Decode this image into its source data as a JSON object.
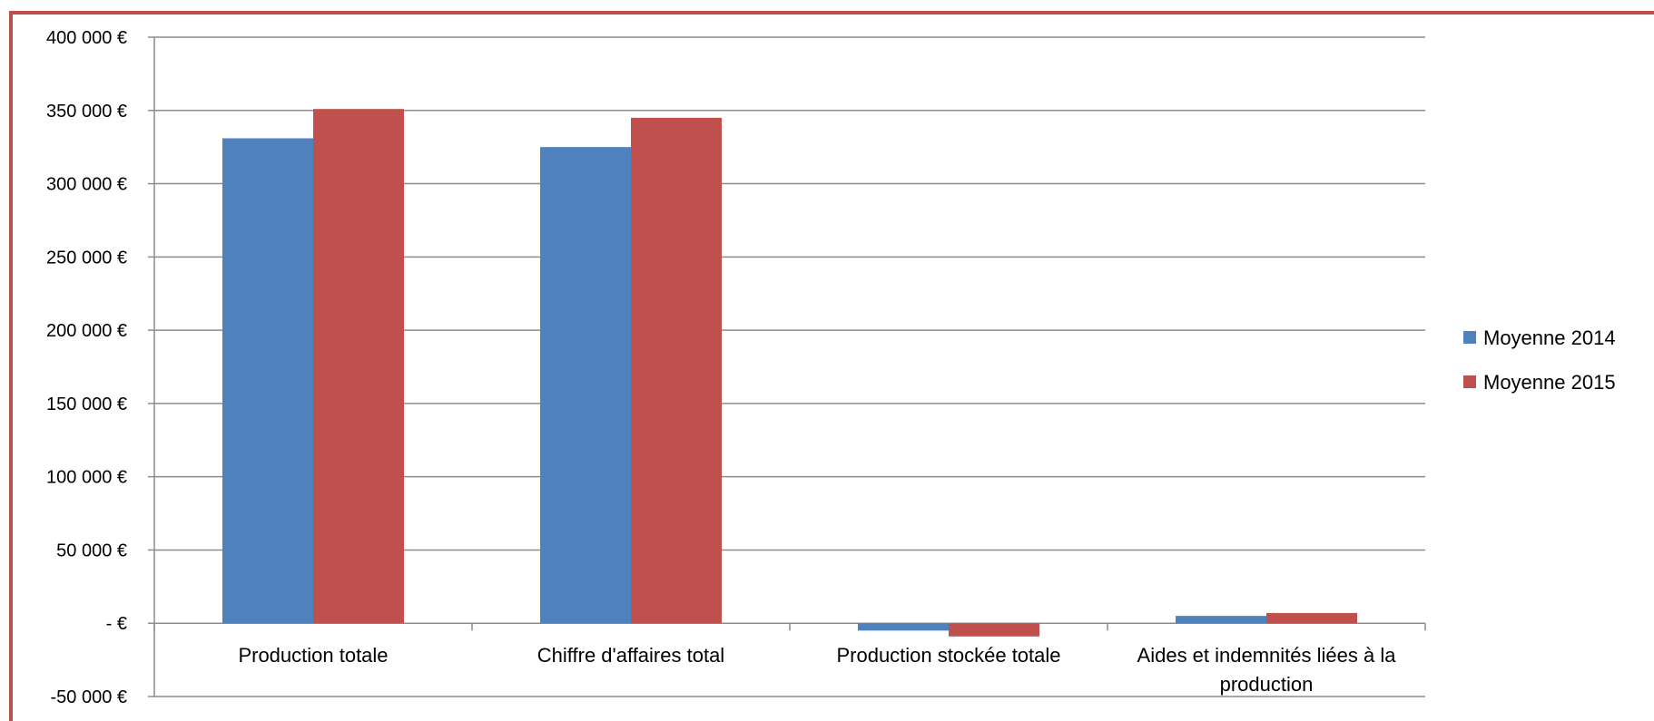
{
  "chart_data": {
    "type": "bar",
    "categories": [
      "Production totale",
      "Chiffre d'affaires total",
      "Production stockée totale",
      "Aides et indemnités liées à la production"
    ],
    "series": [
      {
        "name": "Moyenne 2014",
        "color": "#4f81bd",
        "values": [
          331000,
          325000,
          -5000,
          5000
        ]
      },
      {
        "name": "Moyenne 2015",
        "color": "#c0504d",
        "values": [
          351000,
          345000,
          -9000,
          7000
        ]
      }
    ],
    "y_ticks": [
      {
        "value": 400000,
        "label": "400 000 €"
      },
      {
        "value": 350000,
        "label": "350 000 €"
      },
      {
        "value": 300000,
        "label": "300 000 €"
      },
      {
        "value": 250000,
        "label": "250 000 €"
      },
      {
        "value": 200000,
        "label": "200 000 €"
      },
      {
        "value": 150000,
        "label": "150 000 €"
      },
      {
        "value": 100000,
        "label": "100 000 €"
      },
      {
        "value": 50000,
        "label": "50 000 €"
      },
      {
        "value": 0,
        "label": "-  €"
      },
      {
        "value": -50000,
        "label": "-50 000 €"
      }
    ],
    "ylim": [
      -50000,
      400000
    ],
    "grid": true,
    "legend_position": "right",
    "frame_color": "#c0504d"
  }
}
